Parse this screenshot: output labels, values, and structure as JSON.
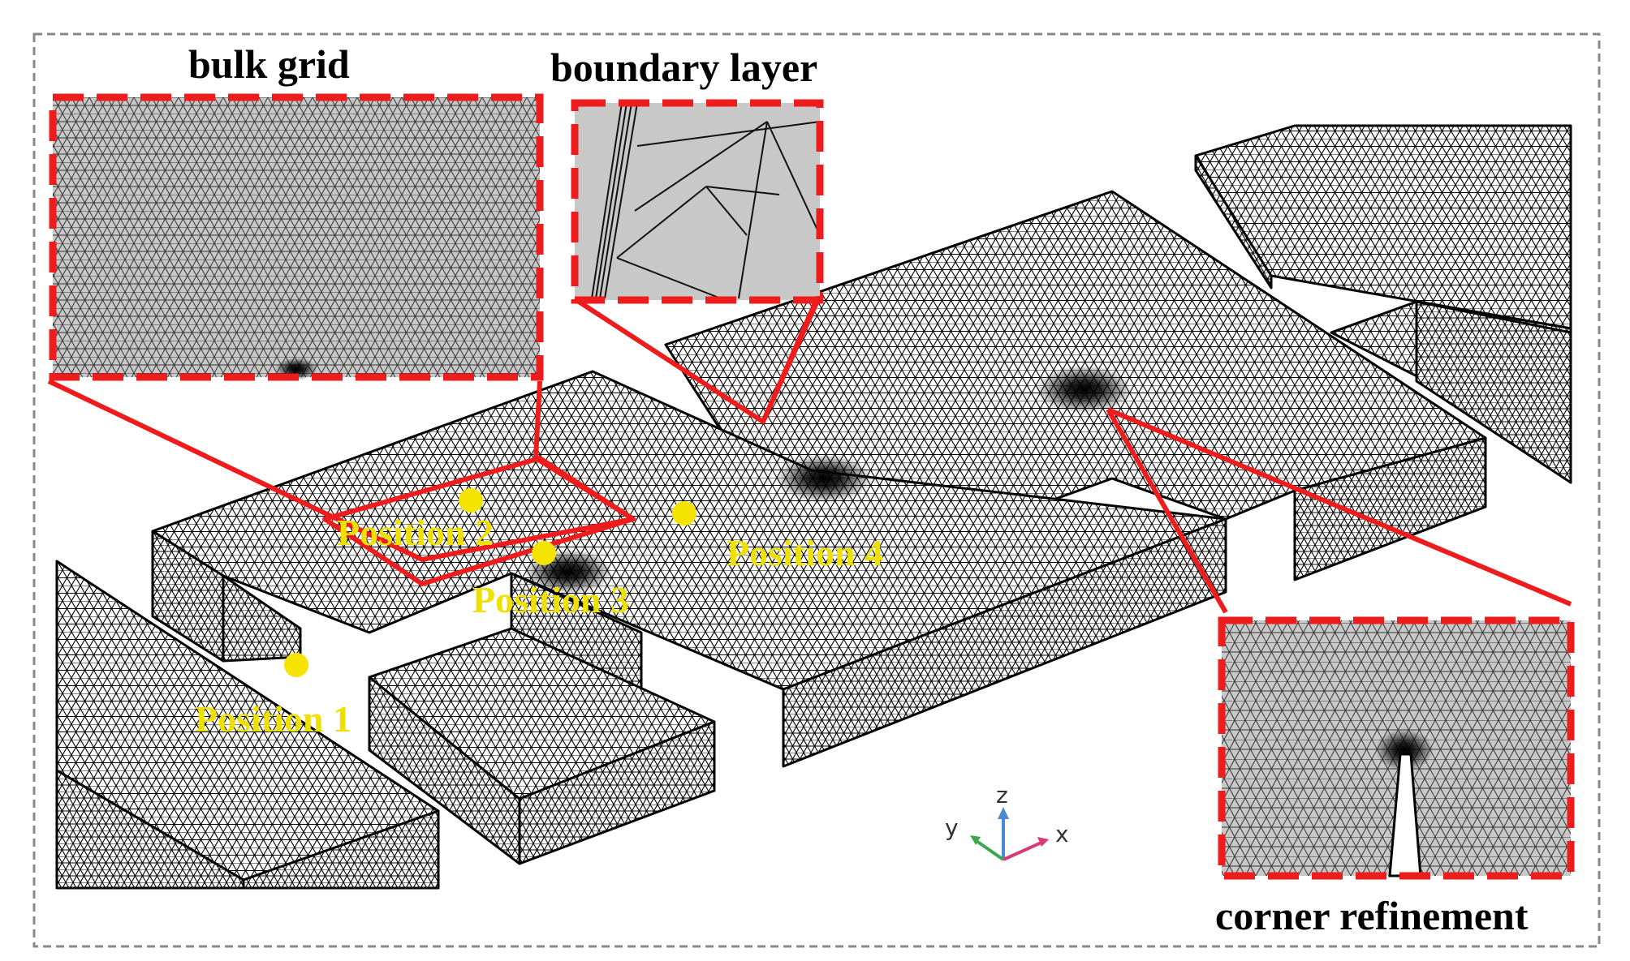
{
  "callouts": {
    "bulk_grid": "bulk grid",
    "boundary_layer": "boundary layer",
    "corner_refinement": "corner refinement"
  },
  "positions": [
    "Position 1",
    "Position 2",
    "Position 3",
    "Position 4"
  ],
  "axes": {
    "z": "z",
    "y": "y",
    "x": "x"
  },
  "colors": {
    "callout_red": "#ee1c1c",
    "marker_yellow": "#f5e400",
    "label_yellow": "#f0e000",
    "mesh_gray": "#c8c8c8",
    "z_axis": "#4a8ad4",
    "y_axis": "#3aa84a",
    "x_axis": "#d63a7a"
  }
}
